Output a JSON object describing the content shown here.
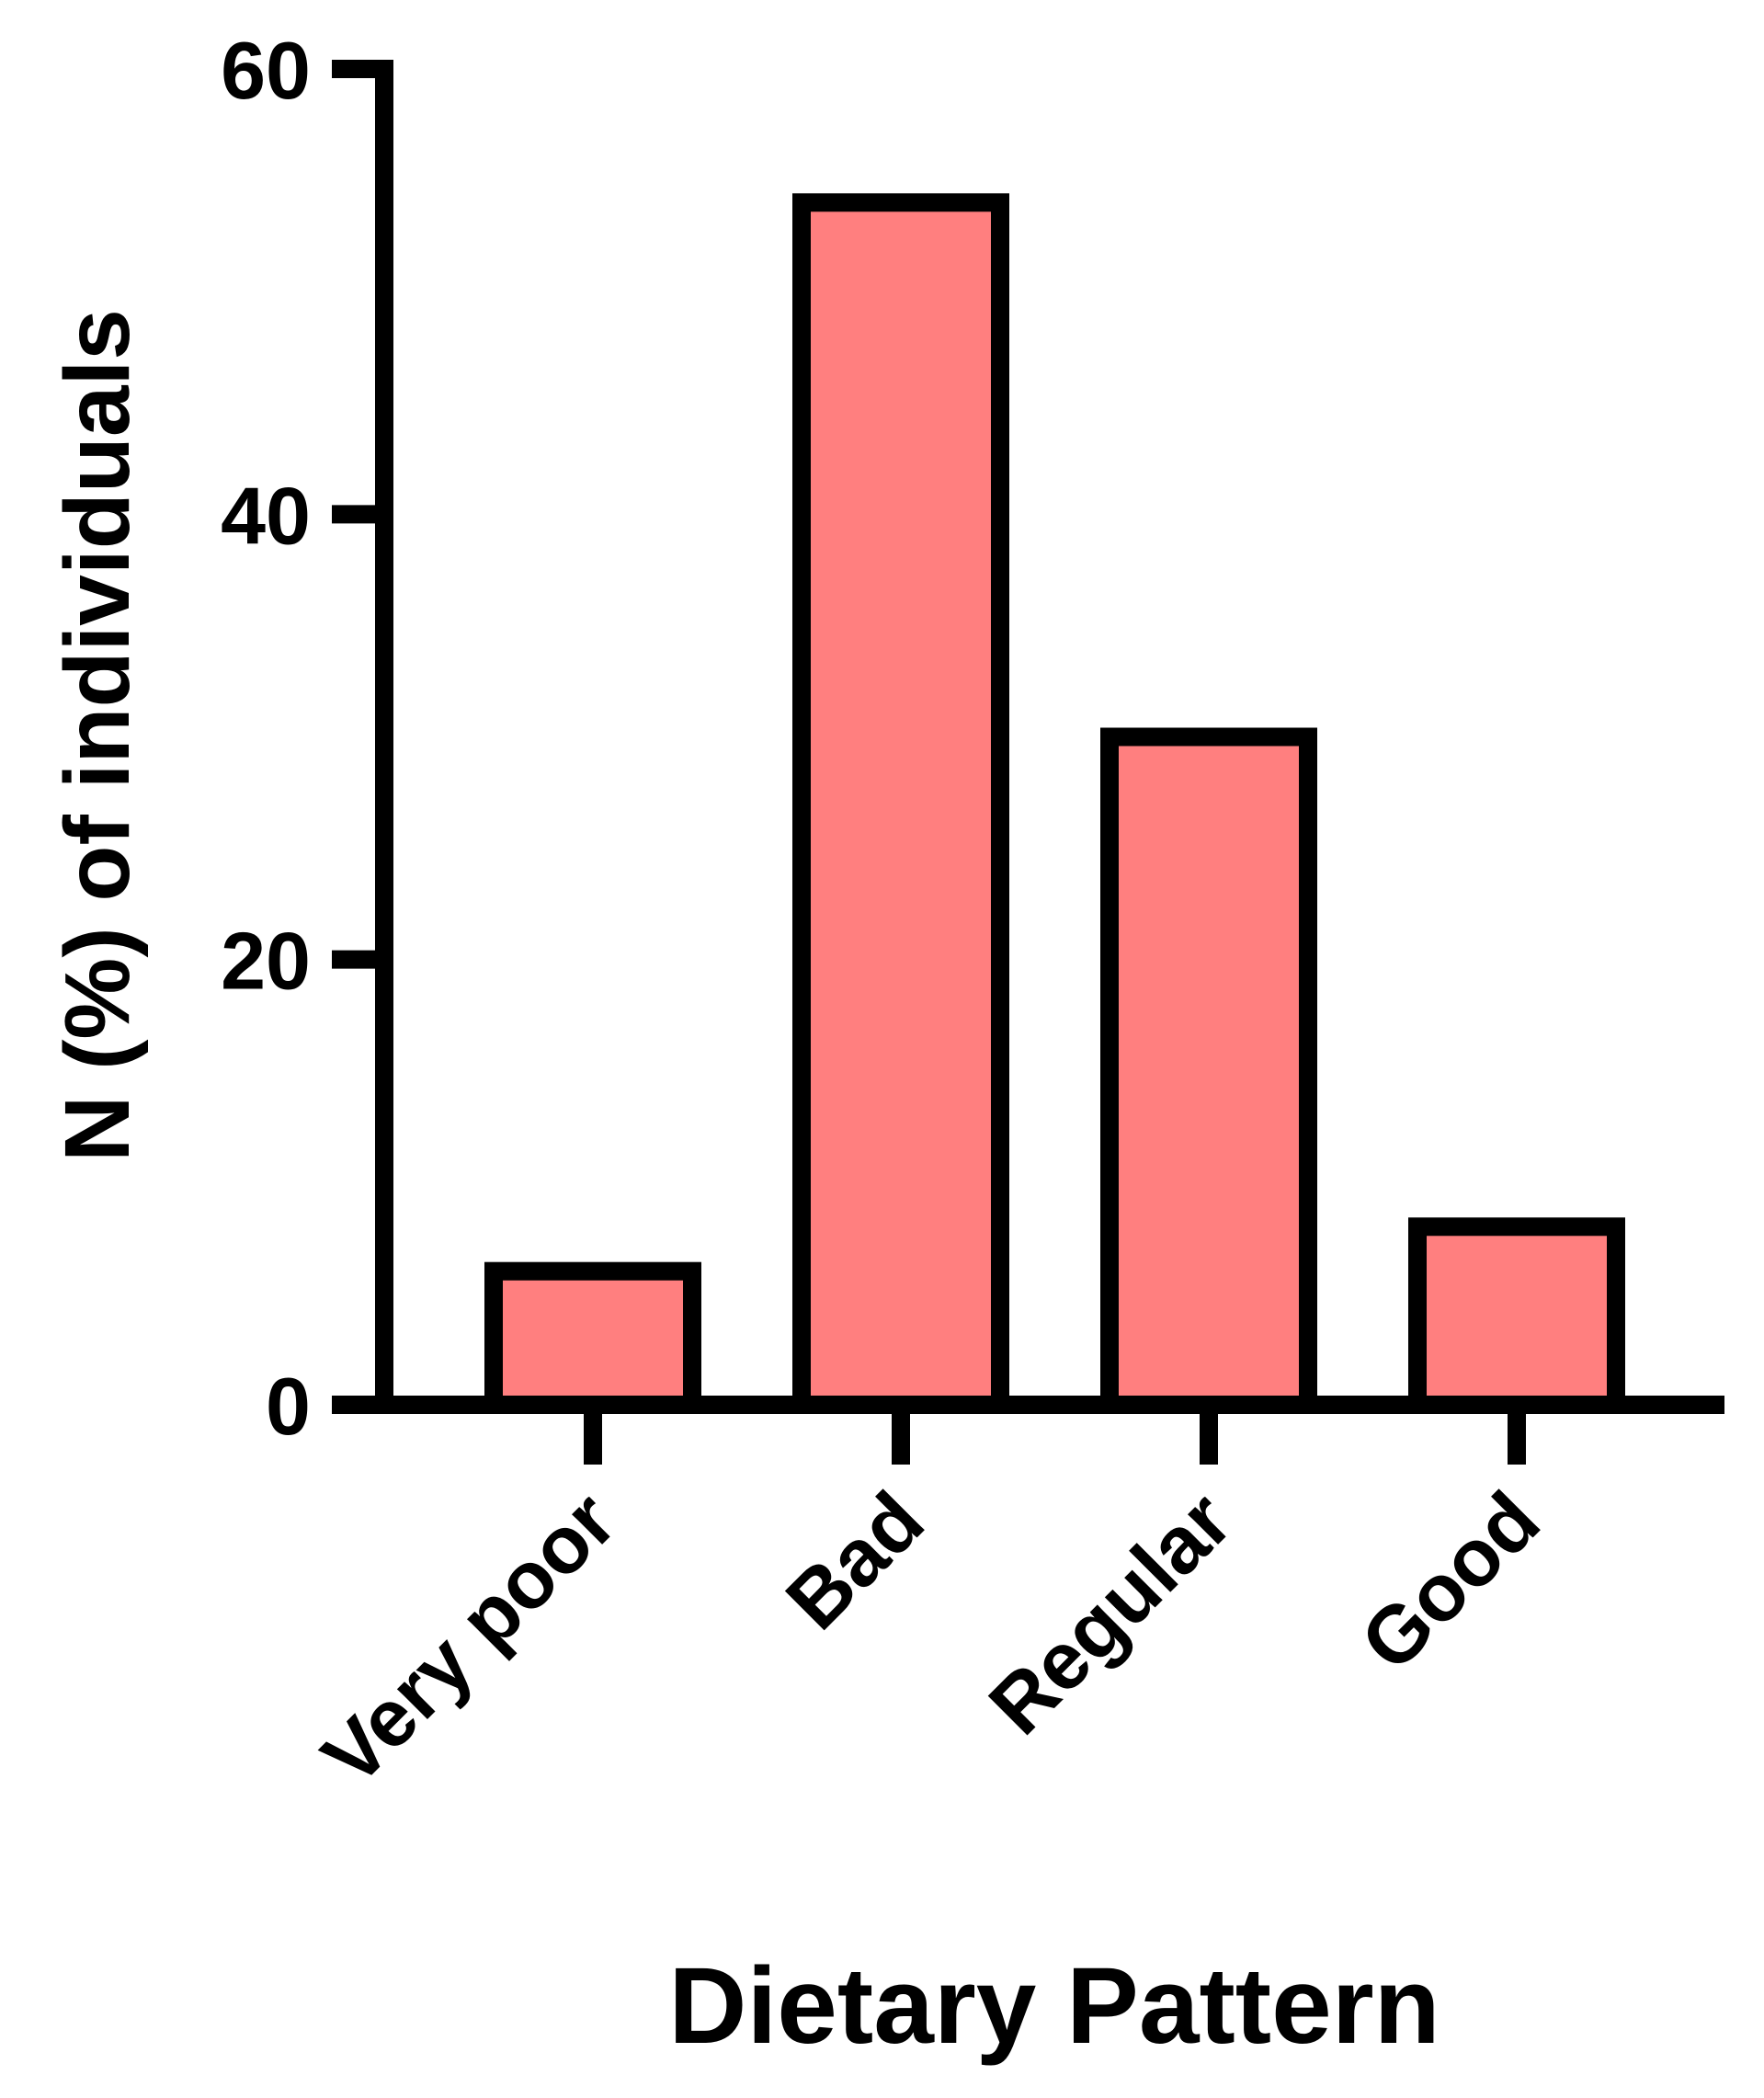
{
  "chart_data": {
    "type": "bar",
    "x_label": "Dietary Pattern",
    "y_label": "N (%) of individuals",
    "categories": [
      "Very poor",
      "Bad",
      "Regular",
      "Good"
    ],
    "values": [
      6,
      54,
      30,
      8
    ],
    "color": "#ff7f7f",
    "ylim": [
      0,
      60
    ],
    "yticks": [
      0,
      20,
      40,
      60
    ],
    "grid": false
  }
}
